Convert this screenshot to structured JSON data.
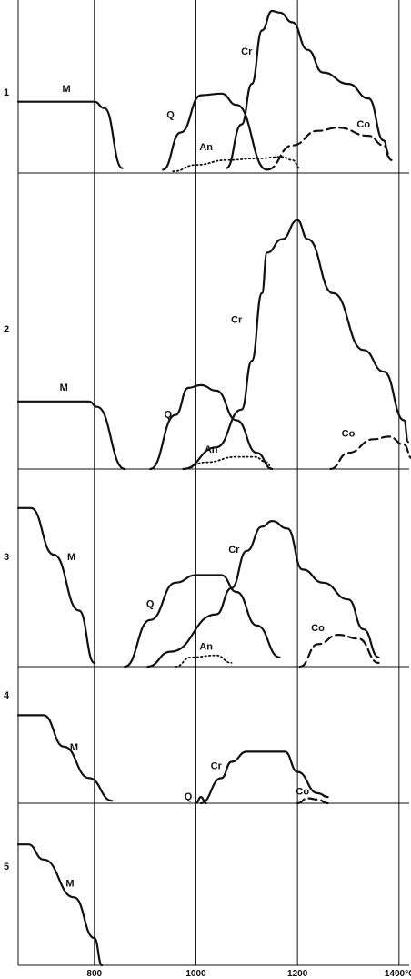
{
  "chart_data": {
    "type": "line",
    "title": "",
    "xlabel": "",
    "ylabel": "",
    "xlim": [
      650,
      1420
    ],
    "x_ticks": [
      {
        "value": 800,
        "label": "800"
      },
      {
        "value": 1000,
        "label": "1000"
      },
      {
        "value": 1200,
        "label": "1200"
      },
      {
        "value": 1400,
        "label": "1400°C"
      }
    ],
    "grid": true,
    "panels": [
      {
        "label": "1",
        "ymax": 1.0,
        "series": [
          {
            "name": "M",
            "style": "solid",
            "points": [
              [
                650,
                0.44
              ],
              [
                800,
                0.44
              ],
              [
                820,
                0.4
              ],
              [
                855,
                0.03
              ]
            ]
          },
          {
            "name": "Q",
            "style": "solid",
            "points": [
              [
                935,
                0.02
              ],
              [
                970,
                0.25
              ],
              [
                1010,
                0.48
              ],
              [
                1050,
                0.49
              ],
              [
                1080,
                0.42
              ],
              [
                1140,
                0.02
              ]
            ]
          },
          {
            "name": "An",
            "style": "dotted",
            "points": [
              [
                955,
                0.01
              ],
              [
                1000,
                0.05
              ],
              [
                1060,
                0.08
              ],
              [
                1120,
                0.09
              ],
              [
                1170,
                0.1
              ],
              [
                1190,
                0.08
              ],
              [
                1205,
                0.03
              ]
            ]
          },
          {
            "name": "Cr",
            "style": "solid",
            "points": [
              [
                1060,
                0.03
              ],
              [
                1090,
                0.3
              ],
              [
                1110,
                0.55
              ],
              [
                1130,
                0.88
              ],
              [
                1150,
                1.0
              ],
              [
                1165,
                0.99
              ],
              [
                1190,
                0.93
              ],
              [
                1220,
                0.76
              ],
              [
                1250,
                0.62
              ],
              [
                1300,
                0.55
              ],
              [
                1340,
                0.46
              ],
              [
                1370,
                0.2
              ],
              [
                1380,
                0.1
              ]
            ]
          },
          {
            "name": "Co",
            "style": "dashed",
            "points": [
              [
                1140,
                0.02
              ],
              [
                1190,
                0.17
              ],
              [
                1240,
                0.26
              ],
              [
                1280,
                0.28
              ],
              [
                1340,
                0.23
              ],
              [
                1370,
                0.17
              ],
              [
                1385,
                0.08
              ]
            ]
          }
        ],
        "labels": [
          {
            "text": "M",
            "x": 745,
            "y": 0.5
          },
          {
            "text": "Q",
            "x": 950,
            "y": 0.34
          },
          {
            "text": "An",
            "x": 1020,
            "y": 0.14
          },
          {
            "text": "Cr",
            "x": 1100,
            "y": 0.73
          },
          {
            "text": "Co",
            "x": 1330,
            "y": 0.28
          }
        ]
      },
      {
        "label": "2",
        "ymax": 1.0,
        "series": [
          {
            "name": "M",
            "style": "solid",
            "points": [
              [
                650,
                0.25
              ],
              [
                790,
                0.25
              ],
              [
                805,
                0.23
              ],
              [
                860,
                0.0
              ]
            ]
          },
          {
            "name": "Q",
            "style": "solid",
            "points": [
              [
                910,
                0.0
              ],
              [
                960,
                0.2
              ],
              [
                985,
                0.3
              ],
              [
                1010,
                0.31
              ],
              [
                1040,
                0.29
              ],
              [
                1080,
                0.18
              ],
              [
                1120,
                0.06
              ],
              [
                1150,
                0.0
              ]
            ]
          },
          {
            "name": "An",
            "style": "dotted",
            "points": [
              [
                975,
                0.0
              ],
              [
                1020,
                0.025
              ],
              [
                1080,
                0.045
              ],
              [
                1115,
                0.045
              ],
              [
                1140,
                0.025
              ],
              [
                1150,
                0.0
              ]
            ]
          },
          {
            "name": "Cr",
            "style": "solid",
            "points": [
              [
                975,
                0.0
              ],
              [
                1040,
                0.08
              ],
              [
                1090,
                0.22
              ],
              [
                1110,
                0.4
              ],
              [
                1130,
                0.65
              ],
              [
                1140,
                0.8
              ],
              [
                1170,
                0.85
              ],
              [
                1200,
                0.92
              ],
              [
                1220,
                0.85
              ],
              [
                1270,
                0.65
              ],
              [
                1330,
                0.44
              ],
              [
                1370,
                0.36
              ],
              [
                1410,
                0.18
              ],
              [
                1418,
                0.1
              ]
            ]
          },
          {
            "name": "Co",
            "style": "dashed",
            "points": [
              [
                1265,
                0.0
              ],
              [
                1300,
                0.06
              ],
              [
                1350,
                0.11
              ],
              [
                1380,
                0.12
              ],
              [
                1410,
                0.09
              ],
              [
                1425,
                0.04
              ]
            ]
          }
        ],
        "labels": [
          {
            "text": "M",
            "x": 740,
            "y": 0.29
          },
          {
            "text": "Q",
            "x": 945,
            "y": 0.19
          },
          {
            "text": "An",
            "x": 1030,
            "y": 0.06
          },
          {
            "text": "Cr",
            "x": 1080,
            "y": 0.54
          },
          {
            "text": "Co",
            "x": 1300,
            "y": 0.12
          }
        ]
      },
      {
        "label": "3",
        "ymax": 1.0,
        "series": [
          {
            "name": "M",
            "style": "solid",
            "points": [
              [
                650,
                0.85
              ],
              [
                675,
                0.85
              ],
              [
                720,
                0.6
              ],
              [
                770,
                0.3
              ],
              [
                800,
                0.02
              ]
            ]
          },
          {
            "name": "Q",
            "style": "solid",
            "points": [
              [
                860,
                0.0
              ],
              [
                910,
                0.25
              ],
              [
                960,
                0.45
              ],
              [
                1000,
                0.49
              ],
              [
                1050,
                0.49
              ],
              [
                1080,
                0.4
              ],
              [
                1120,
                0.22
              ],
              [
                1165,
                0.05
              ]
            ]
          },
          {
            "name": "An",
            "style": "dotted",
            "points": [
              [
                960,
                0.0
              ],
              [
                990,
                0.05
              ],
              [
                1040,
                0.06
              ],
              [
                1070,
                0.02
              ]
            ]
          },
          {
            "name": "Cr",
            "style": "solid",
            "points": [
              [
                905,
                0.0
              ],
              [
                950,
                0.08
              ],
              [
                1040,
                0.28
              ],
              [
                1070,
                0.42
              ],
              [
                1100,
                0.62
              ],
              [
                1130,
                0.75
              ],
              [
                1150,
                0.78
              ],
              [
                1180,
                0.74
              ],
              [
                1210,
                0.52
              ],
              [
                1250,
                0.45
              ],
              [
                1300,
                0.36
              ],
              [
                1330,
                0.2
              ],
              [
                1360,
                0.05
              ]
            ]
          },
          {
            "name": "Co",
            "style": "dashed",
            "points": [
              [
                1205,
                0.0
              ],
              [
                1240,
                0.12
              ],
              [
                1280,
                0.17
              ],
              [
                1320,
                0.15
              ],
              [
                1360,
                0.02
              ]
            ]
          }
        ],
        "labels": [
          {
            "text": "M",
            "x": 755,
            "y": 0.57
          },
          {
            "text": "Q",
            "x": 910,
            "y": 0.32
          },
          {
            "text": "An",
            "x": 1020,
            "y": 0.09
          },
          {
            "text": "Cr",
            "x": 1075,
            "y": 0.61
          },
          {
            "text": "Co",
            "x": 1240,
            "y": 0.19
          }
        ]
      },
      {
        "label": "4",
        "ymax": 1.0,
        "series": [
          {
            "name": "M",
            "style": "solid",
            "points": [
              [
                650,
                0.7
              ],
              [
                700,
                0.7
              ],
              [
                740,
                0.45
              ],
              [
                790,
                0.2
              ],
              [
                835,
                0.02
              ]
            ]
          },
          {
            "name": "Q",
            "style": "solid",
            "points": [
              [
                1000,
                0.0
              ],
              [
                1010,
                0.05
              ],
              [
                1020,
                0.0
              ]
            ]
          },
          {
            "name": "Cr",
            "style": "solid",
            "points": [
              [
                1010,
                0.0
              ],
              [
                1050,
                0.2
              ],
              [
                1070,
                0.33
              ],
              [
                1100,
                0.41
              ],
              [
                1175,
                0.41
              ],
              [
                1200,
                0.25
              ],
              [
                1240,
                0.08
              ],
              [
                1260,
                0.05
              ]
            ]
          },
          {
            "name": "Co",
            "style": "dashed",
            "points": [
              [
                1200,
                0.0
              ],
              [
                1220,
                0.04
              ],
              [
                1240,
                0.03
              ],
              [
                1260,
                0.0
              ]
            ]
          }
        ],
        "labels": [
          {
            "text": "M",
            "x": 760,
            "y": 0.42
          },
          {
            "text": "Q",
            "x": 985,
            "y": 0.03
          },
          {
            "text": "Cr",
            "x": 1040,
            "y": 0.27
          },
          {
            "text": "Co",
            "x": 1210,
            "y": 0.07
          }
        ]
      },
      {
        "label": "5",
        "ymax": 1.0,
        "series": [
          {
            "name": "M",
            "style": "solid",
            "points": [
              [
                650,
                0.8
              ],
              [
                670,
                0.8
              ],
              [
                700,
                0.7
              ],
              [
                760,
                0.45
              ],
              [
                800,
                0.18
              ],
              [
                815,
                0.0
              ]
            ]
          }
        ],
        "labels": [
          {
            "text": "M",
            "x": 752,
            "y": 0.52
          }
        ]
      }
    ]
  }
}
